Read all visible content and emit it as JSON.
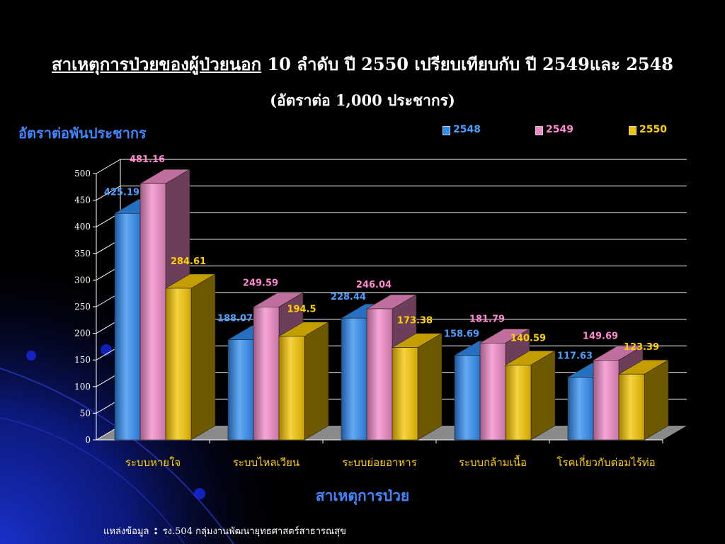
{
  "title": {
    "underlined": "สาเหตุการป่วยของผู้ป่วยนอก",
    "rest": " 10 ลำดับ ปี 2550 เปรียบเทียบกับ ปี 2549และ 2548",
    "subtitle": "(อัตราต่อ 1,000 ประชากร)"
  },
  "source": {
    "label": "แหล่งข้อมูล",
    "colon": " : ",
    "text": "รง.504 กลุ่มงานพัฒนายุทธศาสตร์สาธารณสุข"
  },
  "colors": {
    "2548": "#2f8cf2",
    "2549": "#f089c6",
    "2550": "#f5c400",
    "label_2548": "#4aa0ff",
    "label_2549": "#ff88d0",
    "label_2550": "#ffd000"
  },
  "chart_data": {
    "type": "bar",
    "title": "สาเหตุการป่วยของผู้ป่วยนอก 10 ลำดับ ปี 2550 เปรียบเทียบกับ ปี 2549และ 2548",
    "subtitle": "(อัตราต่อ 1,000 ประชากร)",
    "ylabel": "อัตราต่อพันประชากร",
    "xlabel": "สาเหตุการป่วย",
    "ylim": [
      0,
      500
    ],
    "yticks": [
      0,
      50,
      100,
      150,
      200,
      250,
      300,
      350,
      400,
      450,
      500
    ],
    "grid": true,
    "legend_position": "top-right",
    "categories": [
      "ระบบหายใจ",
      "ระบบไหลเวียน",
      "ระบบย่อยอาหาร",
      "ระบบกล้ามเนื้อ",
      "โรคเกี่ยวกับต่อมไร้ท่อ"
    ],
    "series": [
      {
        "name": "2548",
        "values": [
          425.19,
          188.07,
          228.44,
          158.69,
          117.63
        ]
      },
      {
        "name": "2549",
        "values": [
          481.16,
          249.59,
          246.04,
          181.79,
          149.69
        ]
      },
      {
        "name": "2550",
        "values": [
          284.61,
          194.5,
          173.38,
          140.59,
          123.39
        ]
      }
    ]
  }
}
